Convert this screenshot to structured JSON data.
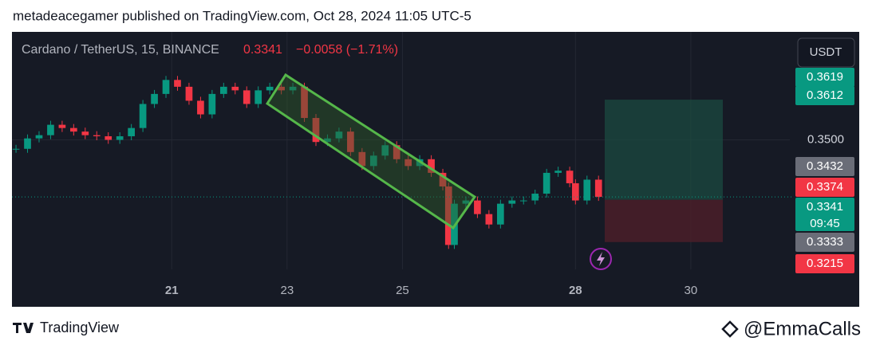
{
  "header": {
    "published": "metadeacegamer published on TradingView.com, Oct 28, 2024 11:05 UTC-5"
  },
  "chart_data": {
    "type": "candlestick",
    "symbol": "Cardano / TetherUS, 15, BINANCE",
    "last": "0.3341",
    "change": "−0.0058 (−1.71%)",
    "currency": "USDT",
    "countdown": "09:45",
    "x": [
      18.3,
      18.5,
      18.7,
      18.9,
      19.1,
      19.3,
      19.5,
      19.7,
      19.9,
      20.1,
      20.3,
      20.5,
      20.7,
      20.9,
      21.1,
      21.3,
      21.5,
      21.7,
      21.9,
      22.1,
      22.3,
      22.5,
      22.7,
      22.9,
      23.1,
      23.3,
      23.5,
      23.7,
      23.9,
      24.1,
      24.3,
      24.5,
      24.7,
      24.9,
      25.1,
      25.3,
      25.5,
      25.7,
      25.8,
      25.9,
      26.1,
      26.3,
      26.5,
      26.7,
      26.9,
      27.1,
      27.3,
      27.5,
      27.7,
      27.9,
      28.0,
      28.2,
      28.4
    ],
    "close": [
      0.3475,
      0.3504,
      0.3513,
      0.3542,
      0.3533,
      0.3523,
      0.3513,
      0.351,
      0.35,
      0.351,
      0.3533,
      0.36,
      0.3628,
      0.3667,
      0.3648,
      0.3609,
      0.3571,
      0.3628,
      0.3648,
      0.3638,
      0.36,
      0.3638,
      0.3648,
      0.3638,
      0.3648,
      0.3561,
      0.3494,
      0.3504,
      0.3523,
      0.3466,
      0.3427,
      0.3456,
      0.3485,
      0.3446,
      0.3427,
      0.3446,
      0.3408,
      0.337,
      0.3207,
      0.3322,
      0.3331,
      0.3293,
      0.3264,
      0.3322,
      0.3331,
      0.3331,
      0.335,
      0.3408,
      0.3414,
      0.3379,
      0.3331,
      0.3389,
      0.3341
    ],
    "up_color": "#089981",
    "down_color": "#f23645",
    "xlim": [
      18.23,
      32.92
    ],
    "ylim": [
      0.3139,
      0.3801
    ],
    "xticks": [
      21,
      23,
      25,
      28,
      30
    ],
    "yticks": [
      {
        "value": 0.35,
        "label": "0.3500"
      }
    ],
    "price_labels": [
      {
        "value": 0.3619,
        "color": "#089981"
      },
      {
        "value": 0.3612,
        "color": "#089981"
      },
      {
        "value": 0.3432,
        "color": "#6a6d78"
      },
      {
        "value": 0.3374,
        "color": "#f23645"
      },
      {
        "value": 0.3341,
        "color": "#089981"
      },
      {
        "value": 0.3333,
        "color": "#6a6d78"
      },
      {
        "value": 0.3215,
        "color": "#f23645"
      }
    ]
  },
  "footer": {
    "brand": "TradingView",
    "author": "@EmmaCalls"
  }
}
